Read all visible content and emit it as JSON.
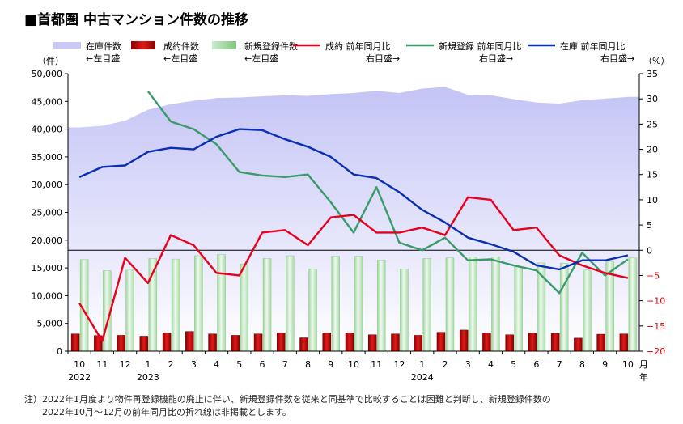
{
  "chart_data": {
    "type": "bar+line+area",
    "title": "■首都圏 中古マンション件数の推移",
    "left_unit": "（件）",
    "right_unit": "（%）",
    "month_suffix": "月",
    "year_suffix": "年",
    "categories": [
      "10",
      "11",
      "12",
      "1",
      "2",
      "3",
      "4",
      "5",
      "6",
      "7",
      "8",
      "9",
      "10",
      "11",
      "12",
      "1",
      "2",
      "3",
      "4",
      "5",
      "6",
      "7",
      "8",
      "9",
      "10"
    ],
    "year_labels": [
      {
        "index": 0,
        "label": "2022"
      },
      {
        "index": 3,
        "label": "2023"
      },
      {
        "index": 15,
        "label": "2024"
      }
    ],
    "left_axis": {
      "min": 0,
      "max": 50000,
      "step": 5000,
      "tick_labels": [
        "0",
        "5,000",
        "10,000",
        "15,000",
        "20,000",
        "25,000",
        "30,000",
        "35,000",
        "40,000",
        "45,000",
        "50,000"
      ]
    },
    "right_axis": {
      "min": -20,
      "max": 35,
      "step": 5,
      "tick_labels": [
        "−20",
        "−15",
        "−10",
        "−5",
        "0",
        "5",
        "10",
        "15",
        "20",
        "25",
        "30",
        "35"
      ],
      "negative_color": "#e00000"
    },
    "legend": [
      {
        "name": "在庫件数",
        "sub": "←左目盛",
        "kind": "area",
        "color": "#c9c9f5"
      },
      {
        "name": "成約件数",
        "sub": "←左目盛",
        "kind": "bar",
        "color": "#c80000"
      },
      {
        "name": "新規登録件数",
        "sub": "←左目盛",
        "kind": "bar",
        "color": "#b9e6b9"
      },
      {
        "name": "成約 前年同月比",
        "sub": "右目盛→",
        "kind": "line",
        "color": "#e8001c"
      },
      {
        "name": "新規登録 前年同月比",
        "sub": "右目盛→",
        "kind": "line",
        "color": "#3a9a6a"
      },
      {
        "name": "在庫 前年同月比",
        "sub": "右目盛→",
        "kind": "line",
        "color": "#0a2fb0"
      }
    ],
    "series": [
      {
        "name": "在庫件数",
        "axis": "left",
        "type": "area",
        "values": [
          40300,
          40600,
          41500,
          43500,
          44500,
          45100,
          45600,
          45700,
          45900,
          46100,
          46000,
          46300,
          46500,
          46900,
          46500,
          47300,
          47600,
          46200,
          46100,
          45400,
          44800,
          44600,
          45200,
          45500,
          45800
        ]
      },
      {
        "name": "成約件数",
        "axis": "left",
        "type": "bar",
        "values": [
          3100,
          2800,
          2850,
          2700,
          3300,
          3550,
          3100,
          2850,
          3100,
          3300,
          2400,
          3300,
          3300,
          2950,
          3100,
          2850,
          3400,
          3800,
          3250,
          2950,
          3250,
          3200,
          2350,
          3050,
          3100
        ]
      },
      {
        "name": "新規登録件数",
        "axis": "left",
        "type": "bar",
        "values": [
          16500,
          14500,
          14600,
          16700,
          16600,
          17200,
          17400,
          15700,
          16700,
          17200,
          14800,
          17100,
          17100,
          16400,
          14800,
          16700,
          16800,
          17000,
          17000,
          15200,
          15900,
          15800,
          14600,
          16200,
          16800
        ]
      },
      {
        "name": "成約 前年同月比",
        "axis": "right",
        "type": "line",
        "values": [
          -10.5,
          -18,
          -1.5,
          -6.5,
          3,
          1,
          -4.5,
          -5,
          3.5,
          4,
          1,
          6.5,
          7,
          3.5,
          3.5,
          4.5,
          3,
          10.5,
          10,
          4,
          4.5,
          -1,
          -3,
          -4.5,
          -5.5
        ]
      },
      {
        "name": "新規登録 前年同月比",
        "axis": "right",
        "type": "line",
        "values": [
          null,
          null,
          null,
          31.5,
          25.5,
          24,
          21,
          15.5,
          14.8,
          14.5,
          15,
          9.5,
          3.5,
          12.5,
          1.5,
          0,
          2.5,
          -2,
          -1.8,
          -3,
          -4,
          -8.5,
          -0.5,
          -5,
          -1.8
        ]
      },
      {
        "name": "在庫 前年同月比",
        "axis": "right",
        "type": "line",
        "values": [
          14.5,
          16.5,
          16.8,
          19.5,
          20.3,
          20,
          22.5,
          24,
          23.8,
          22,
          20.5,
          18.5,
          15,
          14.3,
          11.5,
          8,
          5.5,
          2.5,
          1.2,
          -0.3,
          -3,
          -3.8,
          -2,
          -2,
          -1
        ]
      }
    ]
  },
  "footnote": {
    "lines": [
      "注）2022年1月度より物件再登録機能の廃止に伴い、新規登録件数を従来と同基準で比較することは困難と判断し、新規登録件数の",
      "　　2022年10月～12月の前年同月比の折れ線は非掲載とします。"
    ]
  }
}
